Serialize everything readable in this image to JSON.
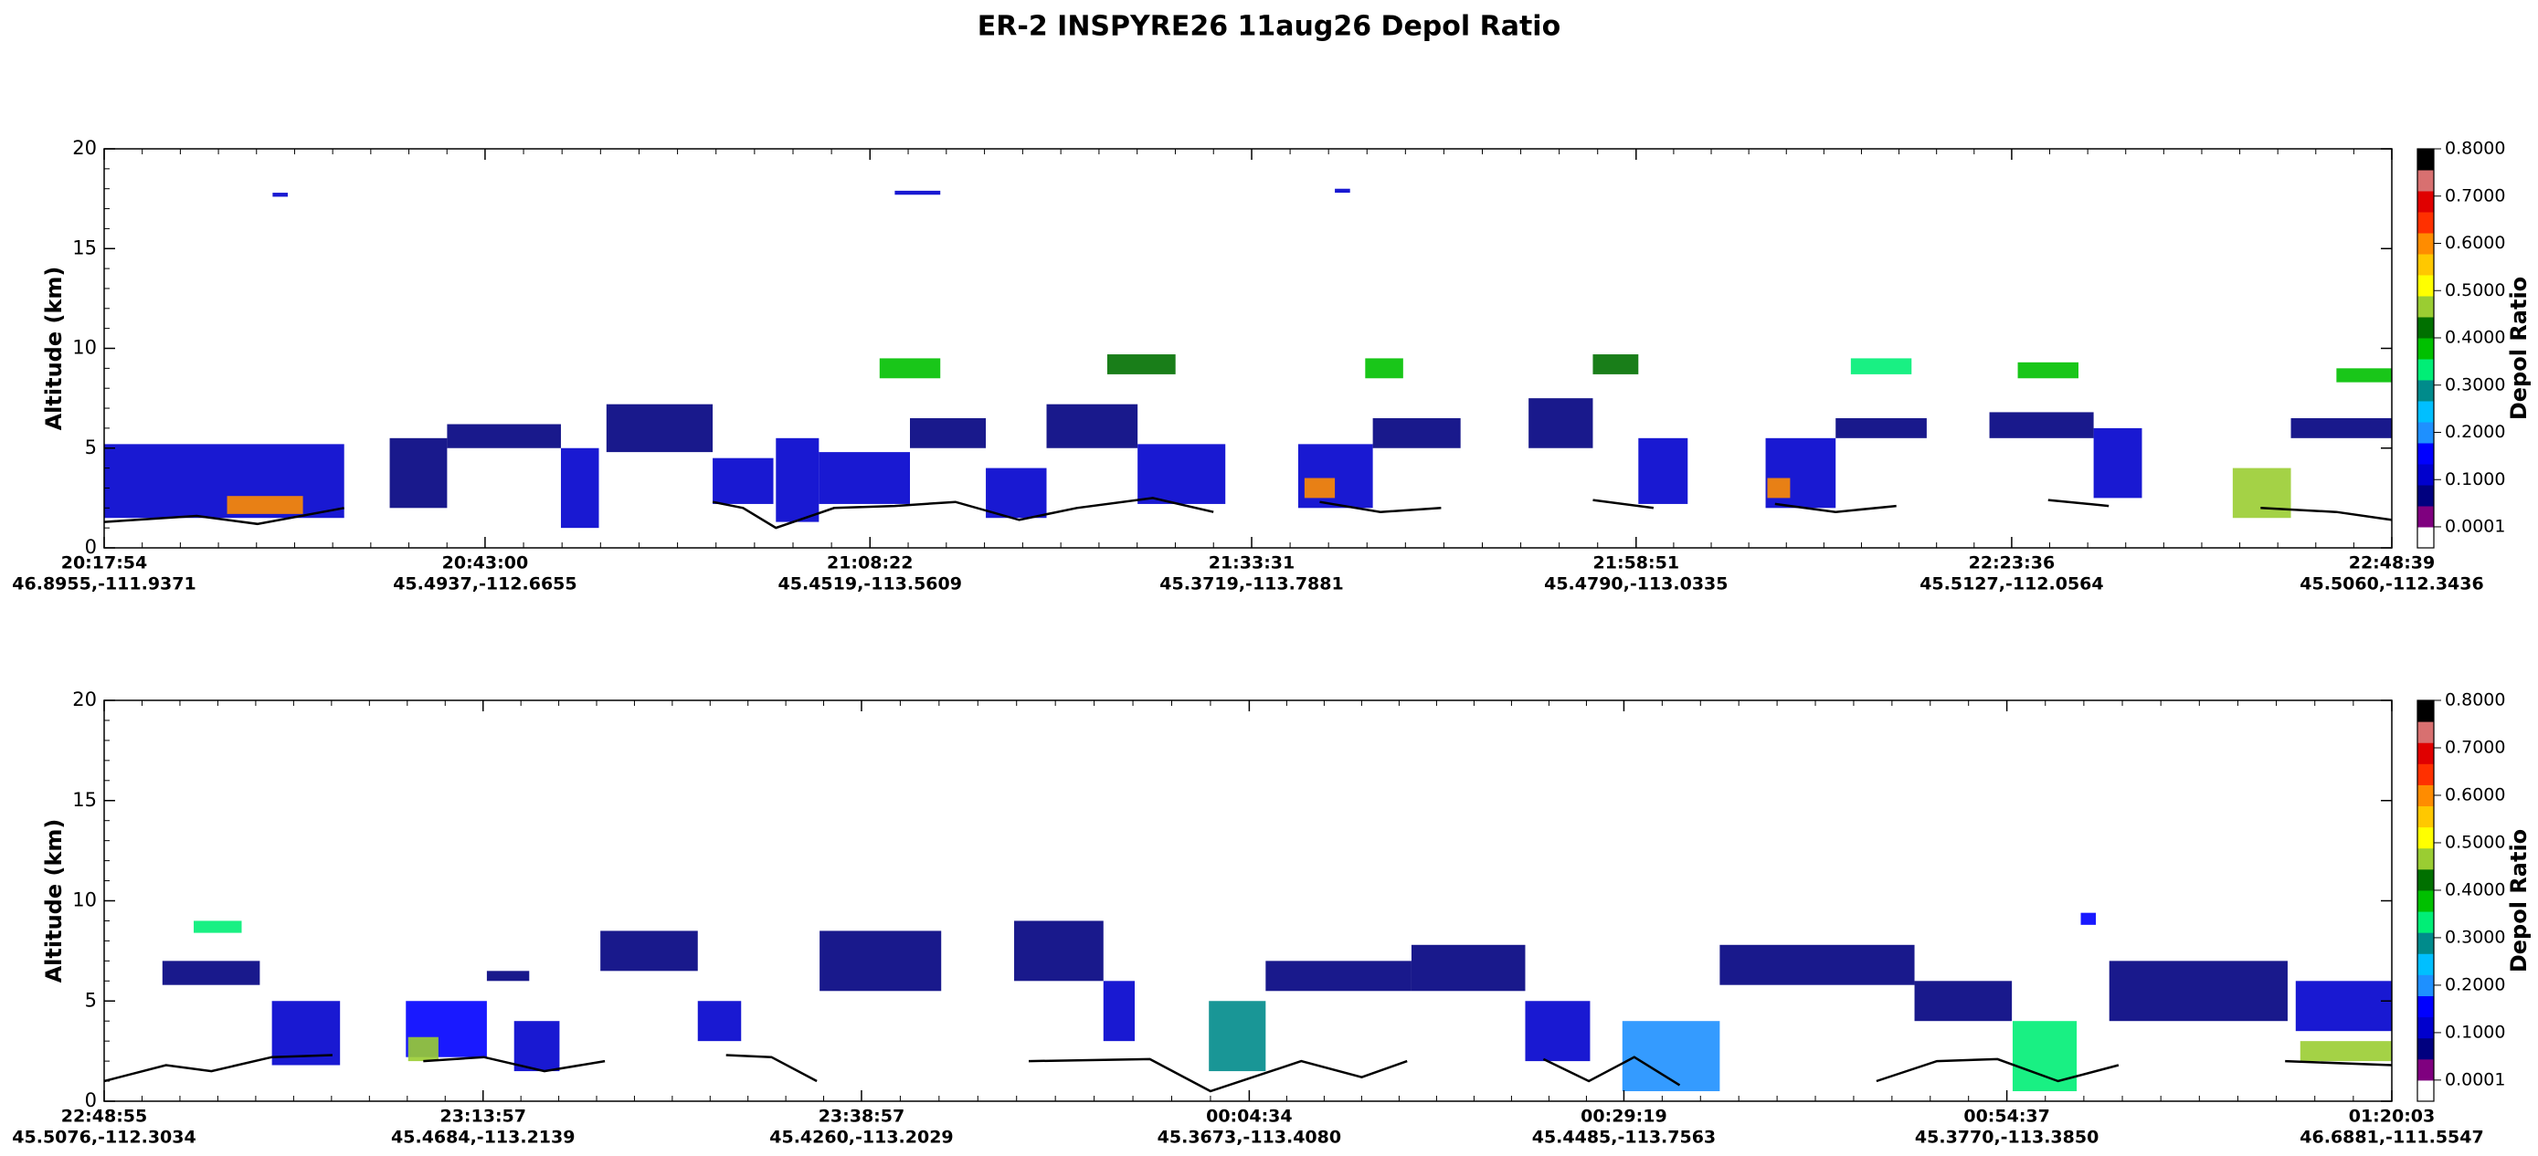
{
  "title": "ER-2  INSPYRE26  11aug26  Depol Ratio",
  "chart_data": [
    {
      "type": "curtain",
      "ylabel": "Altitude (km)",
      "ylim": [
        0,
        20
      ],
      "yticks": [
        0,
        5,
        10,
        15,
        20
      ],
      "xlim": [
        "20:17:54",
        "22:48:39"
      ],
      "xticks": [
        "20:17:54",
        "20:43:00",
        "21:08:22",
        "21:33:31",
        "21:58:51",
        "22:23:36",
        "22:48:39"
      ],
      "xtick_locations": [
        "46.8955,-111.9371",
        "45.4937,-112.6655",
        "45.4519,-113.5609",
        "45.3719,-113.7881",
        "45.4790,-113.0335",
        "45.5127,-112.0564",
        "45.5060,-112.3436"
      ],
      "colorbar_label": "Depol Ratio",
      "clim": [
        0,
        0.8
      ],
      "colorbar_colors": [
        "#ffffff",
        "#7f007f",
        "#00007f",
        "#0000cd",
        "#0000ff",
        "#1e90ff",
        "#00bfff",
        "#008b8b",
        "#00ee76",
        "#00c000",
        "#007000",
        "#9acd32",
        "#ffff00",
        "#ffc800",
        "#ff8c00",
        "#ff3000",
        "#e00000",
        "#d87070",
        "#000000"
      ],
      "colorbar_ticks": [
        {
          "value": 0.0001,
          "label": "0.0001"
        },
        {
          "value": 0.1,
          "label": "0.1000"
        },
        {
          "value": 0.2,
          "label": "0.2000"
        },
        {
          "value": 0.3,
          "label": "0.3000"
        },
        {
          "value": 0.4,
          "label": "0.4000"
        },
        {
          "value": 0.5,
          "label": "0.5000"
        },
        {
          "value": 0.6,
          "label": "0.6000"
        },
        {
          "value": 0.7,
          "label": "0.7000"
        },
        {
          "value": 0.8,
          "label": "0.8000"
        }
      ],
      "cells": [
        [
          "20:17:54",
          "20:33:43",
          1.5,
          5.2,
          0.12
        ],
        [
          "20:26:00",
          "20:31:00",
          1.7,
          2.6,
          0.62
        ],
        [
          "20:36:43",
          "20:40:30",
          2.0,
          5.5,
          0.05
        ],
        [
          "20:40:30",
          "20:48:00",
          5.0,
          6.2,
          0.05
        ],
        [
          "20:48:00",
          "20:50:30",
          1.0,
          5.0,
          0.12
        ],
        [
          "20:51:00",
          "20:58:00",
          4.8,
          7.2,
          0.05
        ],
        [
          "20:58:00",
          "21:02:00",
          2.2,
          4.5,
          0.12
        ],
        [
          "21:02:10",
          "21:05:00",
          1.3,
          5.5,
          0.12
        ],
        [
          "21:05:00",
          "21:11:00",
          2.2,
          4.8,
          0.12
        ],
        [
          "21:11:00",
          "21:16:00",
          5.0,
          6.5,
          0.05
        ],
        [
          "21:09:00",
          "21:13:00",
          8.5,
          9.5,
          0.38
        ],
        [
          "21:16:00",
          "21:20:00",
          1.5,
          4.0,
          0.12
        ],
        [
          "21:20:00",
          "21:26:00",
          5.0,
          7.2,
          0.05
        ],
        [
          "21:24:00",
          "21:28:30",
          8.7,
          9.7,
          0.42
        ],
        [
          "21:26:00",
          "21:31:47",
          2.2,
          5.2,
          0.12
        ],
        [
          "21:36:35",
          "21:41:30",
          2.0,
          5.2,
          0.12
        ],
        [
          "21:37:00",
          "21:39:00",
          2.5,
          3.5,
          0.62
        ],
        [
          "21:41:30",
          "21:47:17",
          5.0,
          6.5,
          0.05
        ],
        [
          "21:41:00",
          "21:43:30",
          8.5,
          9.5,
          0.38
        ],
        [
          "21:51:46",
          "21:56:00",
          5.0,
          7.5,
          0.05
        ],
        [
          "21:56:00",
          "21:59:00",
          8.7,
          9.7,
          0.4
        ],
        [
          "21:59:00",
          "22:02:15",
          2.2,
          5.5,
          0.12
        ],
        [
          "22:07:23",
          "22:12:00",
          2.0,
          5.5,
          0.12
        ],
        [
          "22:07:30",
          "22:09:00",
          2.5,
          3.5,
          0.62
        ],
        [
          "22:12:00",
          "22:18:00",
          5.5,
          6.5,
          0.05
        ],
        [
          "22:13:00",
          "22:17:00",
          8.7,
          9.5,
          0.35
        ],
        [
          "22:22:08",
          "22:29:00",
          5.5,
          6.8,
          0.05
        ],
        [
          "22:24:00",
          "22:28:00",
          8.5,
          9.3,
          0.38
        ],
        [
          "22:29:00",
          "22:32:11",
          2.5,
          6.0,
          0.12
        ],
        [
          "22:38:10",
          "22:42:00",
          1.5,
          4.0,
          0.47
        ],
        [
          "22:42:00",
          "22:48:39",
          5.5,
          6.5,
          0.05
        ],
        [
          "22:45:00",
          "22:48:39",
          8.3,
          9.0,
          0.38
        ],
        [
          "20:29:00",
          "20:30:00",
          17.6,
          17.8,
          0.12
        ],
        [
          "21:10:00",
          "21:13:00",
          17.7,
          17.9,
          0.12
        ],
        [
          "21:39:00",
          "21:40:00",
          17.8,
          18.0,
          0.12
        ]
      ],
      "surface": {
        "x": [
          "20:17:54",
          "20:24:00",
          "20:28:00",
          "20:33:43",
          "20:34:00",
          "20:58:00",
          "21:00:00",
          "21:02:10",
          "21:06:00",
          "21:10:00",
          "21:14:00",
          "21:18:12",
          "21:22:00",
          "21:27:00",
          "21:31:00",
          "21:35:00",
          "21:38:00",
          "21:42:00",
          "21:46:00",
          "21:50:00",
          "21:56:00",
          "22:00:00",
          "22:04:00",
          "22:08:00",
          "22:12:00",
          "22:16:00",
          "22:20:00",
          "22:26:00",
          "22:30:00",
          "22:36:00",
          "22:40:00",
          "22:45:00",
          "22:48:39"
        ],
        "y": [
          1.3,
          1.6,
          1.2,
          2.0,
          null,
          2.3,
          2.0,
          1.0,
          2.0,
          2.1,
          2.3,
          1.4,
          2.0,
          2.5,
          1.8,
          null,
          2.3,
          1.8,
          2.0,
          null,
          2.4,
          2.0,
          null,
          2.2,
          1.8,
          2.1,
          null,
          2.4,
          2.1,
          null,
          2.0,
          1.8,
          1.4
        ]
      }
    },
    {
      "type": "curtain",
      "ylabel": "Altitude (km)",
      "ylim": [
        0,
        20
      ],
      "yticks": [
        0,
        5,
        10,
        15,
        20
      ],
      "xlim": [
        "22:48:55",
        "01:20:03"
      ],
      "xticks": [
        "22:48:55",
        "23:13:57",
        "23:38:57",
        "00:04:34",
        "00:29:19",
        "00:54:37",
        "01:20:03"
      ],
      "xtick_locations": [
        "45.5076,-112.3034",
        "45.4684,-113.2139",
        "45.4260,-113.2029",
        "45.3673,-113.4080",
        "45.4485,-113.7563",
        "45.3770,-113.3850",
        "46.6881,-111.5547"
      ],
      "colorbar_label": "Depol Ratio",
      "clim": [
        0,
        0.8
      ],
      "colorbar_colors": [
        "#ffffff",
        "#7f007f",
        "#00007f",
        "#0000cd",
        "#0000ff",
        "#1e90ff",
        "#00bfff",
        "#008b8b",
        "#00ee76",
        "#00c000",
        "#007000",
        "#9acd32",
        "#ffff00",
        "#ffc800",
        "#ff8c00",
        "#ff3000",
        "#e00000",
        "#d87070",
        "#000000"
      ],
      "colorbar_ticks": [
        {
          "value": 0.0001,
          "label": "0.0001"
        },
        {
          "value": 0.1,
          "label": "0.1000"
        },
        {
          "value": 0.2,
          "label": "0.2000"
        },
        {
          "value": 0.3,
          "label": "0.3000"
        },
        {
          "value": 0.4,
          "label": "0.4000"
        },
        {
          "value": 0.5,
          "label": "0.5000"
        },
        {
          "value": 0.6,
          "label": "0.6000"
        },
        {
          "value": 0.7,
          "label": "0.7000"
        },
        {
          "value": 0.8,
          "label": "0.8000"
        }
      ],
      "cells": [
        [
          "22:52:46",
          "22:59:12",
          5.8,
          7.0,
          0.05
        ],
        [
          "22:54:50",
          "22:58:00",
          8.4,
          9.0,
          0.35
        ],
        [
          "23:00:00",
          "23:04:30",
          1.8,
          5.0,
          0.12
        ],
        [
          "23:08:51",
          "23:14:12",
          2.2,
          5.0,
          0.15
        ],
        [
          "23:09:00",
          "23:11:00",
          2.0,
          3.2,
          0.47
        ],
        [
          "23:14:12",
          "23:17:00",
          6.0,
          6.5,
          0.05
        ],
        [
          "23:16:00",
          "23:19:00",
          1.5,
          4.0,
          0.12
        ],
        [
          "23:21:42",
          "23:28:08",
          6.5,
          8.5,
          0.05
        ],
        [
          "23:28:08",
          "23:31:00",
          3.0,
          5.0,
          0.12
        ],
        [
          "23:36:11",
          "23:44:13",
          5.5,
          8.5,
          0.05
        ],
        [
          "23:49:02",
          "23:54:56",
          6.0,
          9.0,
          0.05
        ],
        [
          "23:54:56",
          "23:57:00",
          3.0,
          6.0,
          0.12
        ],
        [
          "00:01:54",
          "00:05:39",
          1.5,
          5.0,
          0.3
        ],
        [
          "00:05:39",
          "00:15:17",
          5.5,
          7.0,
          0.08
        ],
        [
          "00:15:17",
          "00:22:48",
          5.5,
          7.8,
          0.05
        ],
        [
          "00:22:48",
          "00:27:05",
          2.0,
          5.0,
          0.12
        ],
        [
          "00:29:13",
          "00:35:39",
          0.5,
          4.0,
          0.2
        ],
        [
          "00:35:39",
          "00:48:31",
          5.8,
          7.8,
          0.05
        ],
        [
          "00:48:31",
          "00:54:57",
          4.0,
          6.0,
          0.05
        ],
        [
          "00:55:00",
          "00:59:14",
          0.5,
          4.0,
          0.35
        ],
        [
          "01:01:23",
          "01:13:10",
          4.0,
          7.0,
          0.05
        ],
        [
          "01:13:42",
          "01:20:03",
          3.5,
          6.0,
          0.12
        ],
        [
          "01:14:00",
          "01:20:03",
          2.0,
          3.0,
          0.47
        ],
        [
          "00:59:30",
          "01:00:30",
          8.8,
          9.4,
          0.15
        ]
      ],
      "surface": {
        "x": [
          "22:48:55",
          "22:53:00",
          "22:56:00",
          "23:00:00",
          "23:04:00",
          "23:05:00",
          "23:10:00",
          "23:14:00",
          "23:18:00",
          "23:22:00",
          "23:23:00",
          "23:30:00",
          "23:33:00",
          "23:36:00",
          "23:40:00",
          "23:50:00",
          "23:58:00",
          "00:02:00",
          "00:08:00",
          "00:12:00",
          "00:15:00",
          "00:20:00",
          "00:24:00",
          "00:27:00",
          "00:30:00",
          "00:33:00",
          "00:40:00",
          "00:46:00",
          "00:50:00",
          "00:54:00",
          "00:58:00",
          "01:02:00",
          "01:08:00",
          "01:13:00",
          "01:20:03"
        ],
        "y": [
          1.0,
          1.8,
          1.5,
          2.2,
          2.3,
          null,
          2.0,
          2.2,
          1.5,
          2.0,
          null,
          2.3,
          2.2,
          1.0,
          null,
          2.0,
          2.1,
          0.5,
          2.0,
          1.2,
          2.0,
          null,
          2.1,
          1.0,
          2.2,
          0.8,
          null,
          1.0,
          2.0,
          2.1,
          1.0,
          1.8,
          null,
          2.0,
          1.8
        ]
      }
    }
  ]
}
